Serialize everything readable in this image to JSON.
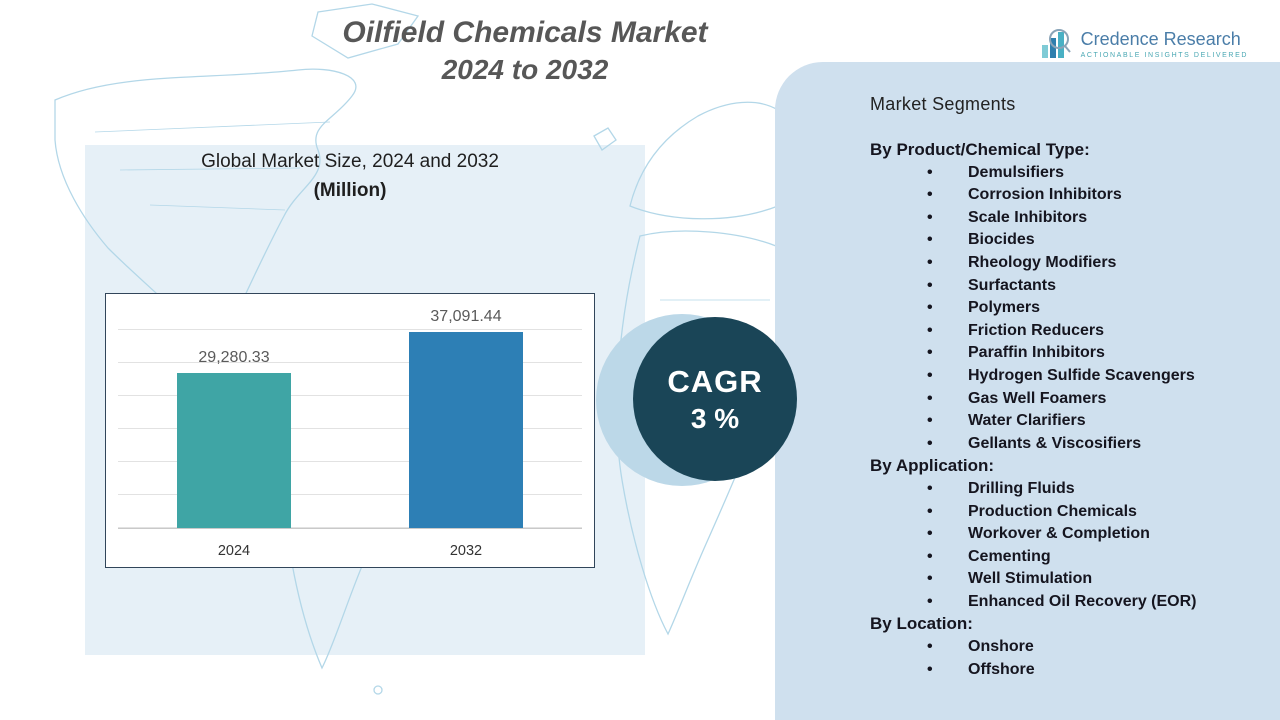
{
  "title": {
    "line1": "Oilfield Chemicals Market",
    "line2": "2024 to 2032"
  },
  "logo": {
    "name": "Credence Research",
    "tagline": "Actionable Insights Delivered"
  },
  "chart_data": {
    "type": "bar",
    "title": "Global Market Size, 2024 and 2032",
    "subtitle": "(Million)",
    "categories": [
      "2024",
      "2032"
    ],
    "values": [
      29280.33,
      37091.44
    ],
    "value_labels": [
      "29,280.33",
      "37,091.44"
    ],
    "bar_colors": [
      "#3fa5a5",
      "#2d7fb5"
    ],
    "ylim": [
      0,
      42000
    ],
    "grid": true,
    "legend": false
  },
  "cagr": {
    "label": "CAGR",
    "value": "3 %"
  },
  "colors": {
    "panel_bg": "#cfe0ee",
    "backdrop_bg": "#e6f0f7",
    "cagr_circle": "#1a4557",
    "bar_2024": "#3fa5a5",
    "bar_2032": "#2d7fb5"
  },
  "segments": {
    "title": "Market Segments",
    "groups": [
      {
        "heading": "By Product/Chemical Type:",
        "items": [
          "Demulsifiers",
          "Corrosion Inhibitors",
          "Scale Inhibitors",
          "Biocides",
          "Rheology Modifiers",
          "Surfactants",
          "Polymers",
          "Friction Reducers",
          "Paraffin Inhibitors",
          "Hydrogen Sulfide Scavengers",
          "Gas Well Foamers",
          "Water Clarifiers",
          "Gellants & Viscosifiers"
        ]
      },
      {
        "heading": "By Application:",
        "items": [
          "Drilling Fluids",
          "Production Chemicals",
          "Workover & Completion",
          "Cementing",
          "Well Stimulation",
          "Enhanced Oil Recovery (EOR)"
        ]
      },
      {
        "heading": "By Location:",
        "items": [
          "Onshore",
          "Offshore"
        ]
      }
    ]
  }
}
